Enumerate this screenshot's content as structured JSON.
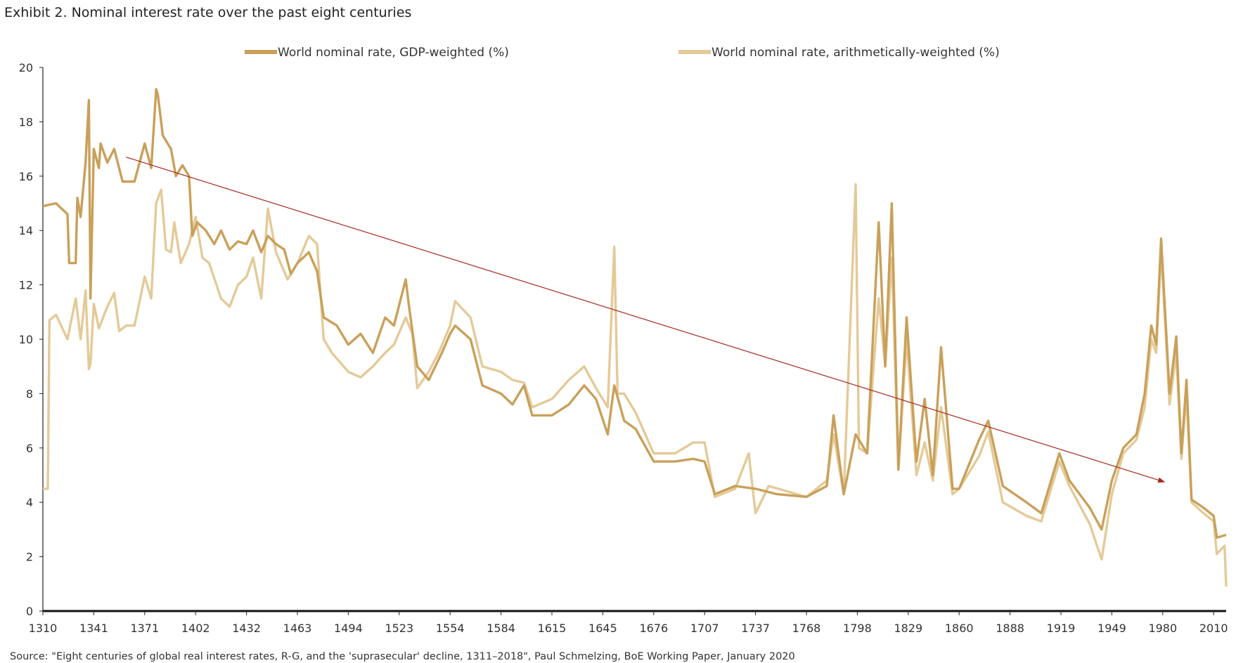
{
  "chart_data": {
    "type": "line",
    "title": "Exhibit 2. Nominal interest rate over the past eight centuries",
    "source": "Source: \"Eight centuries of global real interest rates, R-G, and the 'suprasecular' decline, 1311–2018\", Paul Schmelzing, BoE Working Paper, January 2020",
    "xlabel": "",
    "ylabel": "",
    "ylim": [
      0,
      20
    ],
    "yticks": [
      0,
      2,
      4,
      6,
      8,
      10,
      12,
      14,
      16,
      18,
      20
    ],
    "xtick_labels": [
      "1310",
      "1341",
      "1371",
      "1402",
      "1432",
      "1463",
      "1494",
      "1523",
      "1554",
      "1584",
      "1615",
      "1645",
      "1676",
      "1707",
      "1737",
      "1768",
      "1798",
      "1829",
      "1860",
      "1888",
      "1919",
      "1949",
      "1980",
      "2010"
    ],
    "x_end": 2018,
    "grid": false,
    "legend_placement": "top",
    "series": [
      {
        "name": "World nominal rate, GDP-weighted (%)",
        "color": "#C9A05A",
        "x": [
          1310,
          1318,
          1325,
          1326,
          1330,
          1331,
          1333,
          1336,
          1338,
          1339,
          1341,
          1344,
          1345,
          1349,
          1353,
          1358,
          1365,
          1371,
          1375,
          1378,
          1379,
          1382,
          1387,
          1390,
          1394,
          1398,
          1400,
          1403,
          1408,
          1413,
          1417,
          1422,
          1427,
          1432,
          1436,
          1441,
          1445,
          1450,
          1455,
          1459,
          1463,
          1470,
          1475,
          1479,
          1487,
          1494,
          1501,
          1508,
          1515,
          1520,
          1527,
          1529,
          1534,
          1541,
          1549,
          1554,
          1557,
          1566,
          1573,
          1584,
          1591,
          1598,
          1603,
          1615,
          1625,
          1634,
          1641,
          1648,
          1652,
          1658,
          1665,
          1676,
          1689,
          1700,
          1707,
          1713,
          1725,
          1737,
          1750,
          1768,
          1780,
          1784,
          1790,
          1797,
          1804,
          1811,
          1815,
          1819,
          1823,
          1828,
          1834,
          1839,
          1844,
          1849,
          1856,
          1860,
          1871,
          1876,
          1884,
          1898,
          1907,
          1918,
          1924,
          1936,
          1943,
          1949,
          1956,
          1964,
          1969,
          1973,
          1976,
          1979,
          1984,
          1988,
          1991,
          1994,
          1997,
          2004,
          2010,
          2012,
          2018
        ],
        "y": [
          14.9,
          15.0,
          14.6,
          12.8,
          12.8,
          15.2,
          14.5,
          16.5,
          18.8,
          11.5,
          17.0,
          16.3,
          17.2,
          16.5,
          17.0,
          15.8,
          15.8,
          17.2,
          16.3,
          19.2,
          19.0,
          17.5,
          17.0,
          16.0,
          16.4,
          16.0,
          13.8,
          14.3,
          14.0,
          13.5,
          14.0,
          13.3,
          13.6,
          13.5,
          14.0,
          13.2,
          13.8,
          13.5,
          13.3,
          12.4,
          12.8,
          13.2,
          12.5,
          10.8,
          10.5,
          9.8,
          10.2,
          9.5,
          10.8,
          10.5,
          12.2,
          11.2,
          9.0,
          8.5,
          9.5,
          10.2,
          10.5,
          10.0,
          8.3,
          8.0,
          7.6,
          8.3,
          7.2,
          7.2,
          7.6,
          8.3,
          7.8,
          6.5,
          8.3,
          7.0,
          6.7,
          5.5,
          5.5,
          5.6,
          5.5,
          4.3,
          4.6,
          4.5,
          4.3,
          4.2,
          4.6,
          7.2,
          4.3,
          6.5,
          5.8,
          14.3,
          9.0,
          15.0,
          5.2,
          10.8,
          5.5,
          7.8,
          5.0,
          9.7,
          4.5,
          4.5,
          6.3,
          7.0,
          4.6,
          4.0,
          3.6,
          5.8,
          4.8,
          3.8,
          3.0,
          4.8,
          6.0,
          6.5,
          8.0,
          10.5,
          9.8,
          13.7,
          8.0,
          10.1,
          5.8,
          8.5,
          4.1,
          3.8,
          3.5,
          2.7,
          2.8
        ]
      },
      {
        "name": "World nominal rate, arithmetically-weighted (%)",
        "color": "#E4CA98",
        "x": [
          1310,
          1313,
          1314,
          1318,
          1325,
          1330,
          1333,
          1336,
          1338,
          1339,
          1341,
          1344,
          1349,
          1353,
          1356,
          1360,
          1365,
          1371,
          1375,
          1378,
          1381,
          1384,
          1387,
          1389,
          1393,
          1398,
          1402,
          1406,
          1410,
          1417,
          1422,
          1427,
          1432,
          1436,
          1441,
          1445,
          1450,
          1457,
          1463,
          1470,
          1475,
          1479,
          1484,
          1494,
          1501,
          1508,
          1515,
          1520,
          1527,
          1531,
          1534,
          1541,
          1547,
          1554,
          1557,
          1566,
          1573,
          1584,
          1591,
          1598,
          1603,
          1615,
          1625,
          1634,
          1641,
          1648,
          1652,
          1654,
          1658,
          1665,
          1676,
          1689,
          1700,
          1707,
          1713,
          1725,
          1733,
          1737,
          1745,
          1768,
          1780,
          1784,
          1790,
          1797,
          1799,
          1804,
          1811,
          1815,
          1819,
          1823,
          1828,
          1834,
          1839,
          1844,
          1849,
          1856,
          1860,
          1871,
          1876,
          1884,
          1898,
          1907,
          1918,
          1924,
          1936,
          1943,
          1949,
          1956,
          1964,
          1969,
          1973,
          1976,
          1979,
          1984,
          1988,
          1991,
          1994,
          1997,
          2004,
          2010,
          2012,
          2017,
          2018
        ],
        "y": [
          4.5,
          4.5,
          10.7,
          10.9,
          10.0,
          11.5,
          10.0,
          11.8,
          8.9,
          9.1,
          11.3,
          10.4,
          11.2,
          11.7,
          10.3,
          10.5,
          10.5,
          12.3,
          11.5,
          15.0,
          15.5,
          13.3,
          13.2,
          14.3,
          12.8,
          13.5,
          14.5,
          13.0,
          12.8,
          11.5,
          11.2,
          12.0,
          12.3,
          13.0,
          11.5,
          14.8,
          13.2,
          12.2,
          12.8,
          13.8,
          13.5,
          10.0,
          9.5,
          8.8,
          8.6,
          9.0,
          9.5,
          9.8,
          10.8,
          10.2,
          8.2,
          8.8,
          9.5,
          10.5,
          11.4,
          10.8,
          9.0,
          8.8,
          8.5,
          8.4,
          7.5,
          7.8,
          8.5,
          9.0,
          8.2,
          7.5,
          13.4,
          8.0,
          8.0,
          7.3,
          5.8,
          5.8,
          6.2,
          6.2,
          4.2,
          4.5,
          5.8,
          3.6,
          4.6,
          4.2,
          4.8,
          6.5,
          4.3,
          15.7,
          6.0,
          5.8,
          11.5,
          9.0,
          13.0,
          5.2,
          10.0,
          5.0,
          6.2,
          4.8,
          7.5,
          4.3,
          4.5,
          5.7,
          6.6,
          4.0,
          3.5,
          3.3,
          5.5,
          4.6,
          3.2,
          1.9,
          4.3,
          5.8,
          6.3,
          7.5,
          10.0,
          9.5,
          13.3,
          7.6,
          9.5,
          5.6,
          8.0,
          4.0,
          3.6,
          3.3,
          2.1,
          2.4,
          0.9
        ]
      }
    ],
    "annotations": [
      {
        "type": "trend-arrow",
        "color": "#A8281E",
        "from": [
          1360,
          16.7
        ],
        "to": [
          1981,
          4.75
        ]
      }
    ]
  }
}
